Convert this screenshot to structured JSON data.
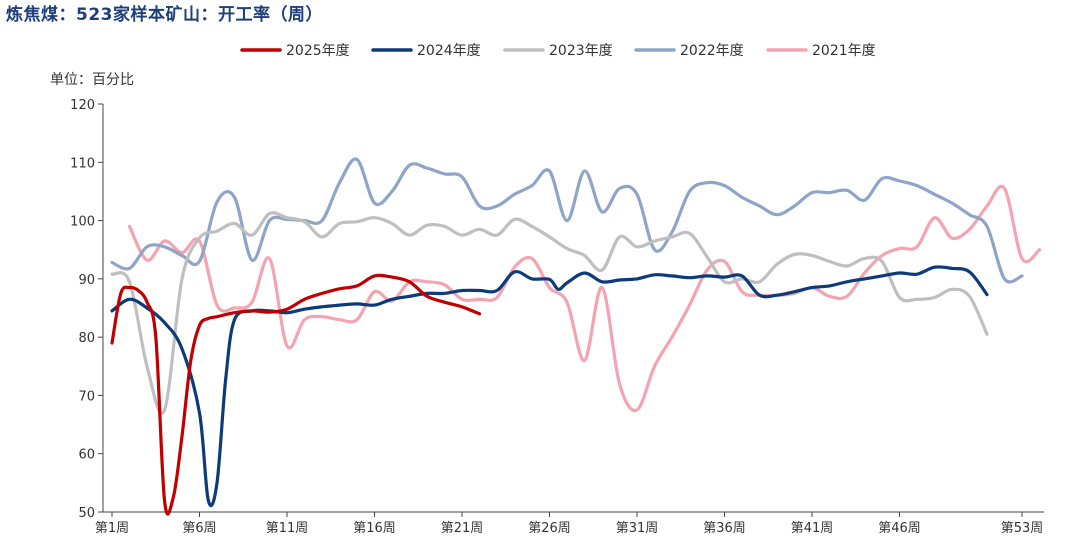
{
  "chart_data": {
    "type": "line",
    "title": "炼焦煤：523家样本矿山：开工率（周）",
    "unit": "单位：百分比",
    "ylim": [
      50,
      120
    ],
    "yticks": [
      50,
      60,
      70,
      80,
      90,
      100,
      110,
      120
    ],
    "xlim": [
      1,
      53
    ],
    "xticks": [
      1,
      6,
      11,
      16,
      21,
      26,
      31,
      36,
      41,
      46,
      53
    ],
    "xtick_labels": [
      "第1周",
      "第6周",
      "第11周",
      "第16周",
      "第21周",
      "第26周",
      "第31周",
      "第36周",
      "第41周",
      "第46周",
      "第53周"
    ],
    "legend_position": "top-center",
    "series": [
      {
        "name": "2025年度",
        "color": "#c00000",
        "points": [
          [
            1,
            79
          ],
          [
            1.5,
            87.5
          ],
          [
            2,
            88.5
          ],
          [
            2.5,
            88
          ],
          [
            3,
            86
          ],
          [
            3.5,
            80
          ],
          [
            4,
            52
          ],
          [
            4.5,
            52.5
          ],
          [
            5,
            63
          ],
          [
            5.5,
            76
          ],
          [
            6,
            82
          ],
          [
            6.5,
            83.2
          ],
          [
            7,
            83.5
          ],
          [
            8,
            84.2
          ],
          [
            9,
            84.5
          ],
          [
            10,
            84.3
          ],
          [
            11,
            84.8
          ],
          [
            12,
            86.5
          ],
          [
            13,
            87.5
          ],
          [
            14,
            88.3
          ],
          [
            15,
            88.8
          ],
          [
            16,
            90.5
          ],
          [
            17,
            90.3
          ],
          [
            18,
            89.5
          ],
          [
            19,
            87
          ],
          [
            20,
            86
          ],
          [
            21,
            85.2
          ],
          [
            22,
            84
          ]
        ]
      },
      {
        "name": "2024年度",
        "color": "#0d3a7a",
        "points": [
          [
            1,
            84.5
          ],
          [
            2,
            86.5
          ],
          [
            3,
            85
          ],
          [
            4,
            82.5
          ],
          [
            5,
            78
          ],
          [
            6,
            67
          ],
          [
            6.5,
            52
          ],
          [
            7,
            55
          ],
          [
            7.5,
            73
          ],
          [
            8,
            83
          ],
          [
            9,
            84.5
          ],
          [
            10,
            84.5
          ],
          [
            11,
            84.2
          ],
          [
            12,
            84.8
          ],
          [
            13,
            85.2
          ],
          [
            14,
            85.5
          ],
          [
            15,
            85.7
          ],
          [
            16,
            85.5
          ],
          [
            17,
            86.5
          ],
          [
            18,
            87
          ],
          [
            19,
            87.5
          ],
          [
            20,
            87.5
          ],
          [
            21,
            88
          ],
          [
            22,
            88
          ],
          [
            23,
            88
          ],
          [
            24,
            91.2
          ],
          [
            25,
            90
          ],
          [
            26,
            89.9
          ],
          [
            26.5,
            88.2
          ],
          [
            27,
            89.3
          ],
          [
            28,
            91
          ],
          [
            29,
            89.5
          ],
          [
            30,
            89.8
          ],
          [
            31,
            90
          ],
          [
            32,
            90.7
          ],
          [
            33,
            90.5
          ],
          [
            34,
            90.2
          ],
          [
            35,
            90.5
          ],
          [
            36,
            90.3
          ],
          [
            37,
            90.5
          ],
          [
            38,
            87.2
          ],
          [
            39,
            87.2
          ],
          [
            40,
            87.8
          ],
          [
            41,
            88.5
          ],
          [
            42,
            88.8
          ],
          [
            43,
            89.5
          ],
          [
            44,
            90
          ],
          [
            45,
            90.5
          ],
          [
            46,
            91
          ],
          [
            47,
            90.8
          ],
          [
            48,
            92
          ],
          [
            49,
            91.8
          ],
          [
            50,
            91.2
          ],
          [
            51,
            87.3
          ]
        ]
      },
      {
        "name": "2023年度",
        "color": "#bfbfbf",
        "points": [
          [
            1,
            90.8
          ],
          [
            2,
            89.5
          ],
          [
            3,
            75
          ],
          [
            4,
            67.5
          ],
          [
            5,
            90
          ],
          [
            6,
            97
          ],
          [
            7,
            98.2
          ],
          [
            8,
            99.5
          ],
          [
            9,
            97.5
          ],
          [
            10,
            101.2
          ],
          [
            11,
            100.5
          ],
          [
            12,
            99.8
          ],
          [
            13,
            97.2
          ],
          [
            14,
            99.5
          ],
          [
            15,
            99.8
          ],
          [
            16,
            100.5
          ],
          [
            17,
            99.5
          ],
          [
            18,
            97.5
          ],
          [
            19,
            99.2
          ],
          [
            20,
            99
          ],
          [
            21,
            97.5
          ],
          [
            22,
            98.5
          ],
          [
            23,
            97.5
          ],
          [
            24,
            100.2
          ],
          [
            25,
            99
          ],
          [
            26,
            97.2
          ],
          [
            27,
            95.2
          ],
          [
            28,
            94
          ],
          [
            29,
            91.5
          ],
          [
            30,
            97.2
          ],
          [
            31,
            95.5
          ],
          [
            32,
            96.5
          ],
          [
            33,
            97.2
          ],
          [
            34,
            97.8
          ],
          [
            35,
            93.8
          ],
          [
            36,
            89.5
          ],
          [
            37,
            90
          ],
          [
            38,
            89.5
          ],
          [
            39,
            92.5
          ],
          [
            40,
            94.2
          ],
          [
            41,
            94
          ],
          [
            42,
            93
          ],
          [
            43,
            92.2
          ],
          [
            44,
            93.5
          ],
          [
            45,
            93
          ],
          [
            46,
            86.8
          ],
          [
            47,
            86.5
          ],
          [
            48,
            86.8
          ],
          [
            49,
            88.2
          ],
          [
            50,
            87
          ],
          [
            51,
            80.5
          ]
        ]
      },
      {
        "name": "2022年度",
        "color": "#8ea5c8",
        "points": [
          [
            1,
            92.8
          ],
          [
            2,
            91.8
          ],
          [
            3,
            95.5
          ],
          [
            4,
            95.5
          ],
          [
            5,
            94
          ],
          [
            6,
            93
          ],
          [
            7,
            103.2
          ],
          [
            8,
            104
          ],
          [
            9,
            93.2
          ],
          [
            10,
            100
          ],
          [
            11,
            100.2
          ],
          [
            12,
            100
          ],
          [
            13,
            100
          ],
          [
            14,
            106.5
          ],
          [
            15,
            110.5
          ],
          [
            16,
            103
          ],
          [
            17,
            105
          ],
          [
            18,
            109.5
          ],
          [
            19,
            109
          ],
          [
            20,
            108
          ],
          [
            21,
            107.5
          ],
          [
            22,
            102.5
          ],
          [
            23,
            102.5
          ],
          [
            24,
            104.5
          ],
          [
            25,
            106
          ],
          [
            26,
            108.5
          ],
          [
            27,
            100
          ],
          [
            28,
            108.5
          ],
          [
            29,
            101.5
          ],
          [
            30,
            105.5
          ],
          [
            31,
            104.5
          ],
          [
            32,
            95
          ],
          [
            33,
            98
          ],
          [
            34,
            105
          ],
          [
            35,
            106.5
          ],
          [
            36,
            106
          ],
          [
            37,
            104
          ],
          [
            38,
            102.5
          ],
          [
            39,
            101
          ],
          [
            40,
            102.5
          ],
          [
            41,
            104.8
          ],
          [
            42,
            104.8
          ],
          [
            43,
            105.2
          ],
          [
            44,
            103.5
          ],
          [
            45,
            107.2
          ],
          [
            46,
            106.8
          ],
          [
            47,
            106
          ],
          [
            48,
            104.5
          ],
          [
            49,
            103
          ],
          [
            50,
            101
          ],
          [
            51,
            99
          ],
          [
            52,
            90
          ],
          [
            53,
            90.5
          ]
        ]
      },
      {
        "name": "2021年度",
        "color": "#f4a3b0",
        "points": [
          [
            2,
            99
          ],
          [
            3,
            93.2
          ],
          [
            4,
            96.5
          ],
          [
            5,
            94.5
          ],
          [
            6,
            96.5
          ],
          [
            7,
            85.5
          ],
          [
            8,
            85
          ],
          [
            9,
            86
          ],
          [
            10,
            93.5
          ],
          [
            11,
            78.5
          ],
          [
            12,
            83
          ],
          [
            13,
            83.5
          ],
          [
            14,
            83
          ],
          [
            15,
            83
          ],
          [
            16,
            87.8
          ],
          [
            17,
            86.2
          ],
          [
            18,
            89.5
          ],
          [
            19,
            89.5
          ],
          [
            20,
            89
          ],
          [
            21,
            86.5
          ],
          [
            22,
            86.5
          ],
          [
            23,
            86.8
          ],
          [
            24,
            92
          ],
          [
            25,
            93.5
          ],
          [
            26,
            88.5
          ],
          [
            27,
            86
          ],
          [
            28,
            76
          ],
          [
            29,
            88.5
          ],
          [
            30,
            72
          ],
          [
            31,
            67.5
          ],
          [
            32,
            75
          ],
          [
            33,
            80
          ],
          [
            34,
            85.5
          ],
          [
            35,
            91.5
          ],
          [
            36,
            93
          ],
          [
            37,
            87.8
          ],
          [
            38,
            87.2
          ],
          [
            39,
            87.2
          ],
          [
            40,
            87.5
          ],
          [
            41,
            88.5
          ],
          [
            42,
            87
          ],
          [
            43,
            87
          ],
          [
            44,
            91
          ],
          [
            45,
            94
          ],
          [
            46,
            95.2
          ],
          [
            47,
            95.5
          ],
          [
            48,
            100.5
          ],
          [
            49,
            97
          ],
          [
            50,
            98.5
          ],
          [
            51,
            102.5
          ],
          [
            52,
            105.5
          ],
          [
            53,
            93.5
          ],
          [
            54,
            95
          ]
        ]
      }
    ]
  }
}
